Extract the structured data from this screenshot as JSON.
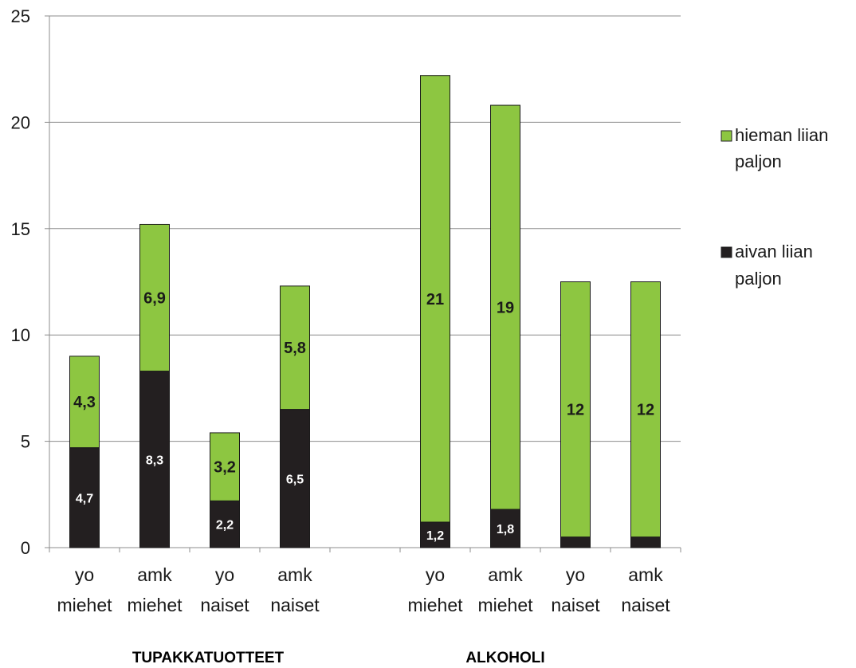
{
  "chart_data": {
    "type": "bar",
    "stacked": true,
    "categories": [
      [
        "yo",
        "miehet"
      ],
      [
        "amk",
        "miehet"
      ],
      [
        "yo",
        "naiset"
      ],
      [
        "amk",
        "naiset"
      ],
      [
        "",
        ""
      ],
      [
        "yo",
        "miehet"
      ],
      [
        "amk",
        "miehet"
      ],
      [
        "yo",
        "naiset"
      ],
      [
        "amk",
        "naiset"
      ]
    ],
    "groups": [
      "TUPAKKATUOTTEET",
      "ALKOHOLI"
    ],
    "series": [
      {
        "name": "aivan liian paljon",
        "color": "#231f20",
        "values": [
          4.7,
          8.3,
          2.2,
          6.5,
          null,
          1.2,
          1.8,
          0.5,
          0.5
        ],
        "labels": [
          "4,7",
          "8,3",
          "2,2",
          "6,5",
          "",
          "1,2",
          "1,8",
          "",
          ""
        ]
      },
      {
        "name": "hieman liian paljon",
        "color": "#8dc641",
        "values": [
          4.3,
          6.9,
          3.2,
          5.8,
          null,
          21,
          19,
          12,
          12
        ],
        "labels": [
          "4,3",
          "6,9",
          "3,2",
          "5,8",
          "",
          "21",
          "19",
          "12",
          "12"
        ]
      }
    ],
    "ylim": [
      0,
      25
    ],
    "yticks": [
      "0",
      "5",
      "10",
      "15",
      "20",
      "25"
    ],
    "grid": true,
    "legend_position": "right",
    "legend": [
      {
        "text_line1": "hieman liian",
        "text_line2": "paljon",
        "color": "#8dc641"
      },
      {
        "text_line1": "aivan liian",
        "text_line2": "paljon",
        "color": "#231f20"
      }
    ]
  }
}
